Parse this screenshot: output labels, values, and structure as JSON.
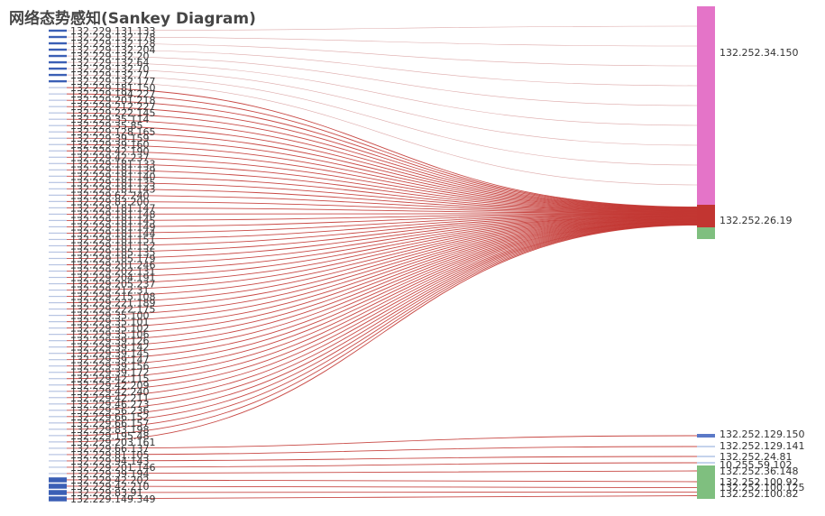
{
  "chart_data": {
    "type": "sankey",
    "title": "网络态势感知(Sankey Diagram)",
    "colors": {
      "source_node": "#3b5fb5",
      "link_main": "#c23531",
      "link_light": "#d9a0a0",
      "target_pink": "#e474c8",
      "target_green": "#7fbf7f",
      "target_blue": "#5b79c7",
      "target_light": "#c5d3ec"
    },
    "source_labels": [
      "132.229.131.133",
      "132.229.132.178",
      "132.229.132.128",
      "132.229.132.204",
      "132.229.132.20",
      "132.229.132.64",
      "132.229.132.70",
      "132.229.132.77",
      "132.229.132.177",
      "132.229.181.150",
      "132.229.194.227",
      "132.229.201.218",
      "132.229.212.227",
      "132.229.222.145",
      "132.229.35.114",
      "132.229.35.85",
      "132.229.128.165",
      "132.229.39.159",
      "132.229.39.160",
      "132.229.42.190",
      "132.229.42.237",
      "132.229.181.133",
      "132.229.181.139",
      "132.229.181.140",
      "132.229.181.135",
      "132.229.181.143",
      "132.229.62.240",
      "132.229.83.200",
      "132.229.181.147",
      "132.229.181.148",
      "132.229.181.145",
      "132.229.181.149",
      "132.229.181.144",
      "132.229.181.151",
      "132.229.181.152",
      "132.229.185.135",
      "132.229.185.179",
      "132.229.201.246",
      "132.229.202.131",
      "132.229.204.191",
      "132.229.205.237",
      "132.229.212.31",
      "132.229.215.108",
      "132.229.221.189",
      "132.229.222.175",
      "132.229.35.100",
      "132.229.35.101",
      "132.229.35.102",
      "132.229.35.106",
      "132.229.39.126",
      "132.229.39.142",
      "132.229.39.145",
      "132.229.39.147",
      "132.229.39.156",
      "132.229.39.172",
      "132.229.42.115",
      "132.229.42.209",
      "132.229.42.240",
      "132.229.42.211",
      "132.229.46.273",
      "132.229.56.236",
      "132.229.66.152",
      "132.229.66.157",
      "132.229.83.198",
      "132.229.195.48",
      "132.229.203.161",
      "132.229.66.137",
      "132.229.81.105",
      "132.229.94.143",
      "132.229.201.146",
      "132.229.39.194",
      "132.229.42.202",
      "132.229.42.210",
      "132.229.83.91",
      "132.229.149.349"
    ],
    "target_labels": [
      "132.252.34.150",
      "132.252.26.19",
      "132.252.129.150",
      "132.252.129.141",
      "132.252.24.81",
      "10.255.59.102",
      "132.252.36.148",
      "132.252.100.92",
      "132.252.100.125",
      "132.252.100.82"
    ],
    "links": [
      {
        "source_range": [
          0,
          8
        ],
        "target": "132.252.34.150",
        "value_each": 1
      },
      {
        "source_range": [
          9,
          65
        ],
        "target": "132.252.26.19",
        "value_each": 1
      },
      {
        "source_range": [
          66,
          66
        ],
        "target": "132.252.129.150",
        "value_each": 1
      },
      {
        "source_range": [
          67,
          67
        ],
        "target": "132.252.129.141",
        "value_each": 1
      },
      {
        "source_range": [
          68,
          68
        ],
        "target": "132.252.24.81",
        "value_each": 1
      },
      {
        "source_range": [
          69,
          69
        ],
        "target": "10.255.59.102",
        "value_each": 1
      },
      {
        "source_range": [
          70,
          70
        ],
        "target": "132.252.36.148",
        "value_each": 1
      },
      {
        "source_range": [
          71,
          71
        ],
        "target": "132.252.100.92",
        "value_each": 1
      },
      {
        "source_range": [
          72,
          73
        ],
        "target": "132.252.100.125",
        "value_each": 1
      },
      {
        "source_range": [
          74,
          74
        ],
        "target": "132.252.100.82",
        "value_each": 1
      }
    ],
    "legend": "none"
  }
}
